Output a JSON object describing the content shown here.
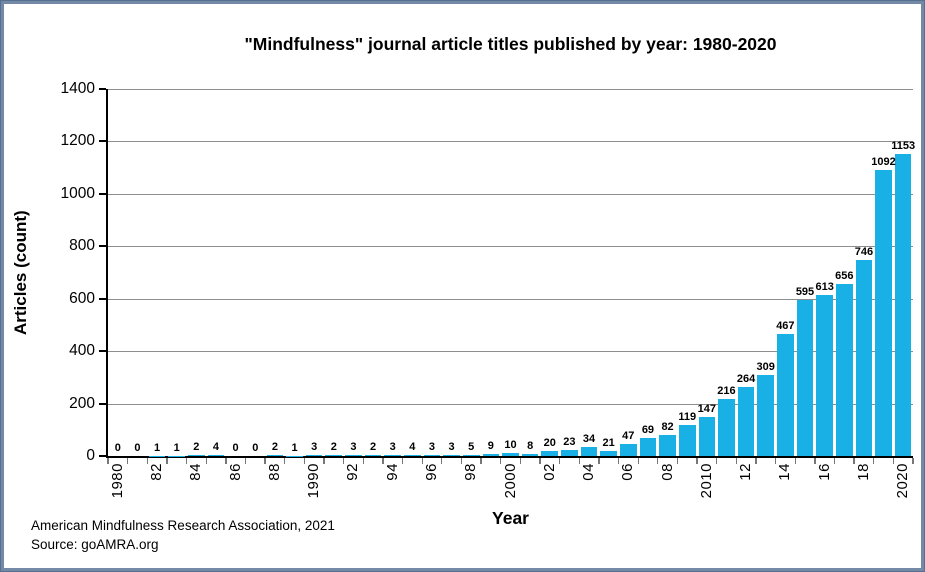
{
  "frame": {
    "border_color": "#7389A6",
    "edge_color": "#56708F",
    "background": "#FFFFFF"
  },
  "chart_data": {
    "type": "bar",
    "title": "\"Mindfulness\" journal article titles published by year: 1980-2020",
    "xlabel": "Year",
    "ylabel": "Articles (count)",
    "bar_color": "#19B1E5",
    "gridline_color": "#8E8E8E",
    "axis_color": "#000000",
    "grid": "horizontal",
    "legend": "none",
    "data_labels": true,
    "ylim": [
      0,
      1400
    ],
    "ytick_labels": [
      "0",
      "200",
      "400",
      "600",
      "800",
      "1000",
      "1200",
      "1400"
    ],
    "categories": [
      1980,
      1981,
      1982,
      1983,
      1984,
      1985,
      1986,
      1987,
      1988,
      1989,
      1990,
      1991,
      1992,
      1993,
      1994,
      1995,
      1996,
      1997,
      1998,
      1999,
      2000,
      2001,
      2002,
      2003,
      2004,
      2005,
      2006,
      2007,
      2008,
      2009,
      2010,
      2011,
      2012,
      2013,
      2014,
      2015,
      2016,
      2017,
      2018,
      2019,
      2020
    ],
    "values": [
      0,
      0,
      1,
      1,
      2,
      4,
      0,
      0,
      2,
      1,
      3,
      2,
      3,
      2,
      3,
      4,
      3,
      3,
      5,
      9,
      10,
      8,
      20,
      23,
      34,
      21,
      47,
      69,
      82,
      119,
      147,
      216,
      264,
      309,
      467,
      595,
      613,
      656,
      746,
      1092,
      1153
    ],
    "xtick_every": 2,
    "xtick_labels": [
      "1980",
      "82",
      "84",
      "86",
      "88",
      "1990",
      "92",
      "94",
      "96",
      "98",
      "2000",
      "02",
      "04",
      "06",
      "08",
      "2010",
      "12",
      "14",
      "16",
      "18",
      "2020"
    ]
  },
  "footer": {
    "line1": "American Mindfulness Research Association, 2021",
    "line2": "Source: goAMRA.org"
  }
}
